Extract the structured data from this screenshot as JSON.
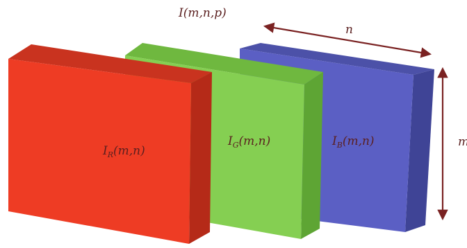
{
  "diagram": {
    "title": "I(m,n,p)",
    "arrow_label_width": "n",
    "arrow_label_height": "m",
    "channels": [
      {
        "name": "B",
        "prefix": "I",
        "sub": "B",
        "suffix": "(m,n)",
        "front": "#5b5fc4",
        "top": "#4c51a8",
        "side": "#3f4496"
      },
      {
        "name": "G",
        "prefix": "I",
        "sub": "G",
        "suffix": "(m,n)",
        "front": "#85cf52",
        "top": "#6fb83f",
        "side": "#5ea534"
      },
      {
        "name": "R",
        "prefix": "I",
        "sub": "R",
        "suffix": "(m,n)",
        "front": "#ee3c24",
        "top": "#c9331f",
        "side": "#b52a18"
      }
    ],
    "arrow_color": "#7a2222"
  }
}
